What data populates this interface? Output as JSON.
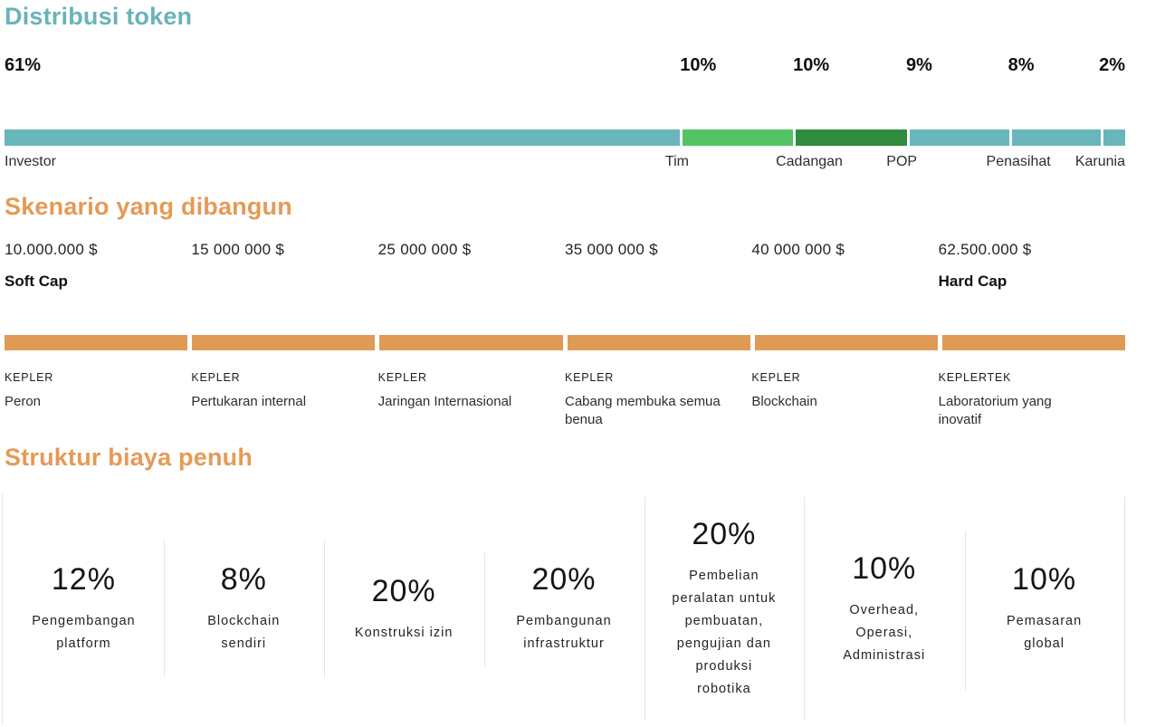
{
  "token_distribution": {
    "title": "Distribusi token",
    "title_color": "#69b3ba",
    "segments": [
      {
        "label": "Investor",
        "percent": "61%",
        "value": 61,
        "color": "#68b6bc"
      },
      {
        "label": "Tim",
        "percent": "10%",
        "value": 10,
        "color": "#53c464"
      },
      {
        "label": "Cadangan",
        "percent": "10%",
        "value": 10,
        "color": "#2f8c3e"
      },
      {
        "label": "POP",
        "percent": "9%",
        "value": 9,
        "color": "#68b6bc"
      },
      {
        "label": "Penasihat",
        "percent": "8%",
        "value": 8,
        "color": "#68b6bc"
      },
      {
        "label": "Karunia",
        "percent": "2%",
        "value": 2,
        "color": "#68b6bc"
      }
    ]
  },
  "scenarios": {
    "title": "Skenario yang dibangun",
    "title_color": "#e59a56",
    "bar_color": "#df9a55",
    "milestones": [
      {
        "amount": "10.000.000 $",
        "cap": "Soft Cap",
        "brand": "KEPLER",
        "name": "Peron"
      },
      {
        "amount": "15 000 000 $",
        "cap": "",
        "brand": "KEPLER",
        "name": "Pertukaran internal"
      },
      {
        "amount": "25 000 000 $",
        "cap": "",
        "brand": "KEPLER",
        "name": "Jaringan Internasional"
      },
      {
        "amount": "35 000 000 $",
        "cap": "",
        "brand": "KEPLER",
        "name": "Cabang membuka semua benua"
      },
      {
        "amount": "40 000 000 $",
        "cap": "",
        "brand": "KEPLER",
        "name": "Blockchain"
      },
      {
        "amount": "62.500.000 $",
        "cap": "Hard Cap",
        "brand": "KEPLERTEK",
        "name": "Laboratorium yang inovatif"
      }
    ]
  },
  "cost_structure": {
    "title": "Struktur biaya penuh",
    "title_color": "#e59a56",
    "items": [
      {
        "percent": "12%",
        "lines": [
          "Pengembangan",
          "platform"
        ]
      },
      {
        "percent": "8%",
        "lines": [
          "Blockchain",
          "sendiri"
        ]
      },
      {
        "percent": "20%",
        "lines": [
          "Konstruksi izin"
        ]
      },
      {
        "percent": "20%",
        "lines": [
          "Pembangunan",
          "infrastruktur"
        ]
      },
      {
        "percent": "20%",
        "lines": [
          "Pembelian",
          "peralatan untuk",
          "pembuatan,",
          "pengujian dan",
          "produksi",
          "robotika"
        ]
      },
      {
        "percent": "10%",
        "lines": [
          "Overhead,",
          "Operasi,",
          "Administrasi"
        ]
      },
      {
        "percent": "10%",
        "lines": [
          "Pemasaran",
          "global"
        ]
      }
    ]
  },
  "chart_data": [
    {
      "type": "bar",
      "subtype": "horizontal-stacked",
      "title": "Distribusi token",
      "categories": [
        "Investor",
        "Tim",
        "Cadangan",
        "POP",
        "Penasihat",
        "Karunia"
      ],
      "values": [
        61,
        10,
        10,
        9,
        8,
        2
      ],
      "unit": "%",
      "colors": [
        "#68b6bc",
        "#53c464",
        "#2f8c3e",
        "#68b6bc",
        "#68b6bc",
        "#68b6bc"
      ],
      "legend_position": "below-bar"
    },
    {
      "type": "bar",
      "subtype": "milestone-timeline",
      "title": "Skenario yang dibangun",
      "categories": [
        "Peron",
        "Pertukaran internal",
        "Jaringan Internasional",
        "Cabang membuka semua benua",
        "Blockchain",
        "Laboratorium yang inovatif"
      ],
      "x": [
        10000000,
        15000000,
        25000000,
        35000000,
        40000000,
        62500000
      ],
      "x_labels": [
        "10.000.000 $",
        "15 000 000 $",
        "25 000 000 $",
        "35 000 000 $",
        "40 000 000 $",
        "62.500.000 $"
      ],
      "series_brands": [
        "KEPLER",
        "KEPLER",
        "KEPLER",
        "KEPLER",
        "KEPLER",
        "KEPLERTEK"
      ],
      "annotations": [
        "Soft Cap = 10.000.000 $",
        "Hard Cap = 62.500.000 $"
      ],
      "unit": "$",
      "bar_color": "#df9a55"
    },
    {
      "type": "bar",
      "subtype": "percentage-cards",
      "title": "Struktur biaya penuh",
      "categories": [
        "Pengembangan platform",
        "Blockchain sendiri",
        "Konstruksi izin",
        "Pembangunan infrastruktur",
        "Pembelian peralatan untuk pembuatan, pengujian dan produksi robotika",
        "Overhead, Operasi, Administrasi",
        "Pemasaran global"
      ],
      "values": [
        12,
        8,
        20,
        20,
        20,
        10,
        10
      ],
      "unit": "%"
    }
  ]
}
